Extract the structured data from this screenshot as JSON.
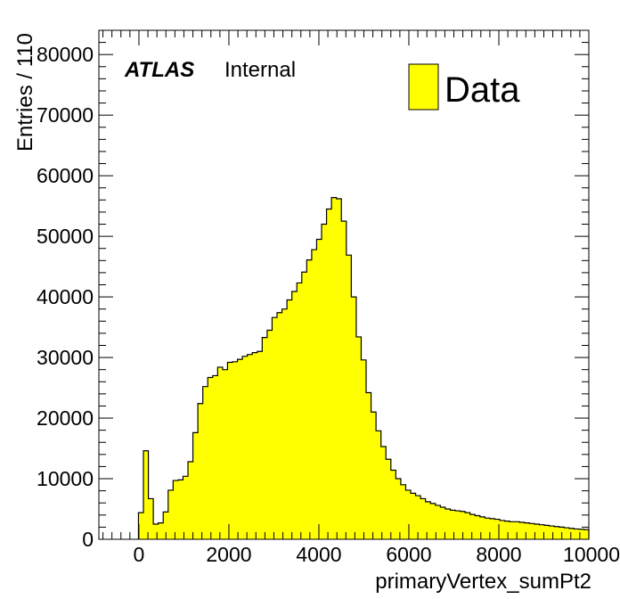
{
  "chart_data": {
    "type": "bar",
    "style": "histogram",
    "experiment": "ATLAS",
    "label": "Internal",
    "xlabel": "primaryVertex_sumPt2",
    "ylabel": "Entries / 110",
    "legend": [
      {
        "name": "Data",
        "color": "#ffff00"
      }
    ],
    "legend_position": "top-right",
    "xlim": [
      -890,
      10000
    ],
    "ylim": [
      0,
      84000
    ],
    "xticks": [
      "0",
      "2000",
      "4000",
      "6000",
      "8000",
      "10000"
    ],
    "yticks": [
      "0",
      "10000",
      "20000",
      "30000",
      "40000",
      "50000",
      "60000",
      "70000",
      "80000"
    ],
    "bin_width": 110,
    "first_bin_low_edge": -10,
    "values": [
      4400,
      14600,
      6700,
      2500,
      2700,
      4500,
      8100,
      9700,
      9800,
      10400,
      12800,
      17600,
      22400,
      25200,
      26700,
      27000,
      28400,
      28000,
      29200,
      29300,
      29700,
      30200,
      30500,
      30800,
      31000,
      33300,
      34500,
      36600,
      37400,
      38000,
      39500,
      40900,
      42300,
      44100,
      46100,
      47800,
      49500,
      52000,
      54500,
      56400,
      56200,
      52500,
      46900,
      40000,
      33400,
      29600,
      24200,
      21000,
      17900,
      15300,
      13200,
      11400,
      10000,
      9000,
      8100,
      7600,
      7200,
      6700,
      6200,
      5900,
      5600,
      5300,
      5000,
      4800,
      4700,
      4600,
      4400,
      4100,
      3900,
      3700,
      3500,
      3400,
      3300,
      3100,
      3000,
      2900,
      2900,
      2800,
      2700,
      2600,
      2500,
      2400,
      2300,
      2200,
      2100,
      2000,
      1900,
      1800,
      1700,
      1650,
      1600,
      1550
    ]
  },
  "colors": {
    "fill": "#ffff00",
    "line": "#000000",
    "background": "#ffffff"
  }
}
